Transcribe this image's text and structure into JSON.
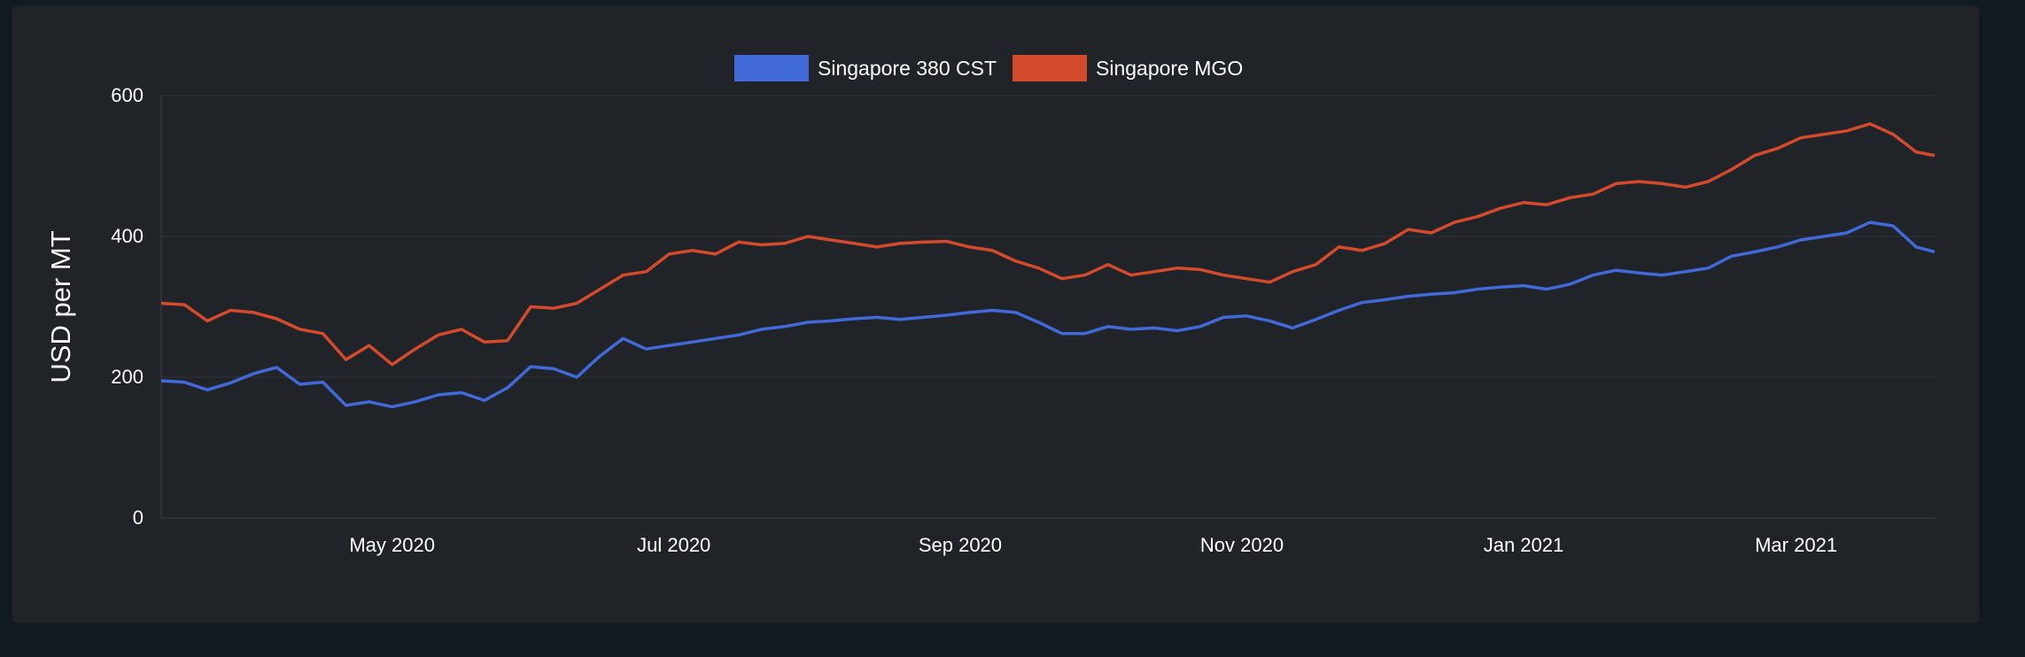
{
  "chart_data": {
    "type": "line",
    "ylabel": "USD per MT",
    "xlabel": "",
    "ylim": [
      0,
      600
    ],
    "yticks": [
      0,
      200,
      400,
      600
    ],
    "xlim": [
      "2020-03-12",
      "2021-03-31"
    ],
    "xticks": [
      {
        "date": "2020-05-01",
        "label": "May 2020"
      },
      {
        "date": "2020-07-01",
        "label": "Jul 2020"
      },
      {
        "date": "2020-09-01",
        "label": "Sep 2020"
      },
      {
        "date": "2020-11-01",
        "label": "Nov 2020"
      },
      {
        "date": "2021-01-01",
        "label": "Jan 2021"
      },
      {
        "date": "2021-03-01",
        "label": "Mar 2021"
      }
    ],
    "grid": true,
    "legend": "top-center",
    "series": [
      {
        "name": "Singapore 380 CST",
        "color": "#4169d8",
        "points": [
          [
            "2020-03-12",
            195
          ],
          [
            "2020-03-17",
            193
          ],
          [
            "2020-03-22",
            182
          ],
          [
            "2020-03-27",
            192
          ],
          [
            "2020-04-01",
            205
          ],
          [
            "2020-04-06",
            214
          ],
          [
            "2020-04-11",
            190
          ],
          [
            "2020-04-16",
            193
          ],
          [
            "2020-04-21",
            160
          ],
          [
            "2020-04-26",
            165
          ],
          [
            "2020-05-01",
            158
          ],
          [
            "2020-05-06",
            165
          ],
          [
            "2020-05-11",
            175
          ],
          [
            "2020-05-16",
            178
          ],
          [
            "2020-05-21",
            167
          ],
          [
            "2020-05-26",
            185
          ],
          [
            "2020-05-31",
            215
          ],
          [
            "2020-06-05",
            212
          ],
          [
            "2020-06-10",
            200
          ],
          [
            "2020-06-15",
            230
          ],
          [
            "2020-06-20",
            255
          ],
          [
            "2020-06-25",
            240
          ],
          [
            "2020-06-30",
            245
          ],
          [
            "2020-07-05",
            250
          ],
          [
            "2020-07-10",
            255
          ],
          [
            "2020-07-15",
            260
          ],
          [
            "2020-07-20",
            268
          ],
          [
            "2020-07-25",
            272
          ],
          [
            "2020-07-30",
            278
          ],
          [
            "2020-08-04",
            280
          ],
          [
            "2020-08-09",
            283
          ],
          [
            "2020-08-14",
            285
          ],
          [
            "2020-08-19",
            282
          ],
          [
            "2020-08-24",
            285
          ],
          [
            "2020-08-29",
            288
          ],
          [
            "2020-09-03",
            292
          ],
          [
            "2020-09-08",
            295
          ],
          [
            "2020-09-13",
            292
          ],
          [
            "2020-09-18",
            278
          ],
          [
            "2020-09-23",
            262
          ],
          [
            "2020-09-28",
            262
          ],
          [
            "2020-10-03",
            272
          ],
          [
            "2020-10-08",
            268
          ],
          [
            "2020-10-13",
            270
          ],
          [
            "2020-10-18",
            266
          ],
          [
            "2020-10-23",
            272
          ],
          [
            "2020-10-28",
            285
          ],
          [
            "2020-11-02",
            287
          ],
          [
            "2020-11-07",
            280
          ],
          [
            "2020-11-12",
            270
          ],
          [
            "2020-11-17",
            282
          ],
          [
            "2020-11-22",
            295
          ],
          [
            "2020-11-27",
            306
          ],
          [
            "2020-12-02",
            310
          ],
          [
            "2020-12-07",
            315
          ],
          [
            "2020-12-12",
            318
          ],
          [
            "2020-12-17",
            320
          ],
          [
            "2020-12-22",
            325
          ],
          [
            "2020-12-27",
            328
          ],
          [
            "2021-01-01",
            330
          ],
          [
            "2021-01-06",
            325
          ],
          [
            "2021-01-11",
            332
          ],
          [
            "2021-01-16",
            345
          ],
          [
            "2021-01-21",
            352
          ],
          [
            "2021-01-26",
            348
          ],
          [
            "2021-01-31",
            345
          ],
          [
            "2021-02-05",
            350
          ],
          [
            "2021-02-10",
            355
          ],
          [
            "2021-02-15",
            372
          ],
          [
            "2021-02-20",
            378
          ],
          [
            "2021-02-25",
            385
          ],
          [
            "2021-03-02",
            395
          ],
          [
            "2021-03-07",
            400
          ],
          [
            "2021-03-12",
            405
          ],
          [
            "2021-03-17",
            420
          ],
          [
            "2021-03-22",
            415
          ],
          [
            "2021-03-27",
            385
          ],
          [
            "2021-03-31",
            378
          ]
        ]
      },
      {
        "name": "Singapore MGO",
        "color": "#d44a2c",
        "points": [
          [
            "2020-03-12",
            305
          ],
          [
            "2020-03-17",
            303
          ],
          [
            "2020-03-22",
            280
          ],
          [
            "2020-03-27",
            295
          ],
          [
            "2020-04-01",
            292
          ],
          [
            "2020-04-06",
            283
          ],
          [
            "2020-04-11",
            268
          ],
          [
            "2020-04-16",
            262
          ],
          [
            "2020-04-21",
            225
          ],
          [
            "2020-04-26",
            245
          ],
          [
            "2020-05-01",
            218
          ],
          [
            "2020-05-06",
            240
          ],
          [
            "2020-05-11",
            260
          ],
          [
            "2020-05-16",
            268
          ],
          [
            "2020-05-21",
            250
          ],
          [
            "2020-05-26",
            252
          ],
          [
            "2020-05-31",
            300
          ],
          [
            "2020-06-05",
            298
          ],
          [
            "2020-06-10",
            305
          ],
          [
            "2020-06-15",
            325
          ],
          [
            "2020-06-20",
            345
          ],
          [
            "2020-06-25",
            350
          ],
          [
            "2020-06-30",
            375
          ],
          [
            "2020-07-05",
            380
          ],
          [
            "2020-07-10",
            375
          ],
          [
            "2020-07-15",
            392
          ],
          [
            "2020-07-20",
            388
          ],
          [
            "2020-07-25",
            390
          ],
          [
            "2020-07-30",
            400
          ],
          [
            "2020-08-04",
            395
          ],
          [
            "2020-08-09",
            390
          ],
          [
            "2020-08-14",
            385
          ],
          [
            "2020-08-19",
            390
          ],
          [
            "2020-08-24",
            392
          ],
          [
            "2020-08-29",
            393
          ],
          [
            "2020-09-03",
            385
          ],
          [
            "2020-09-08",
            380
          ],
          [
            "2020-09-13",
            365
          ],
          [
            "2020-09-18",
            355
          ],
          [
            "2020-09-23",
            340
          ],
          [
            "2020-09-28",
            345
          ],
          [
            "2020-10-03",
            360
          ],
          [
            "2020-10-08",
            345
          ],
          [
            "2020-10-13",
            350
          ],
          [
            "2020-10-18",
            355
          ],
          [
            "2020-10-23",
            353
          ],
          [
            "2020-10-28",
            345
          ],
          [
            "2020-11-02",
            340
          ],
          [
            "2020-11-07",
            335
          ],
          [
            "2020-11-12",
            350
          ],
          [
            "2020-11-17",
            360
          ],
          [
            "2020-11-22",
            385
          ],
          [
            "2020-11-27",
            380
          ],
          [
            "2020-12-02",
            390
          ],
          [
            "2020-12-07",
            410
          ],
          [
            "2020-12-12",
            405
          ],
          [
            "2020-12-17",
            420
          ],
          [
            "2020-12-22",
            428
          ],
          [
            "2020-12-27",
            440
          ],
          [
            "2021-01-01",
            448
          ],
          [
            "2021-01-06",
            445
          ],
          [
            "2021-01-11",
            455
          ],
          [
            "2021-01-16",
            460
          ],
          [
            "2021-01-21",
            475
          ],
          [
            "2021-01-26",
            478
          ],
          [
            "2021-01-31",
            475
          ],
          [
            "2021-02-05",
            470
          ],
          [
            "2021-02-10",
            478
          ],
          [
            "2021-02-15",
            495
          ],
          [
            "2021-02-20",
            515
          ],
          [
            "2021-02-25",
            525
          ],
          [
            "2021-03-02",
            540
          ],
          [
            "2021-03-07",
            545
          ],
          [
            "2021-03-12",
            550
          ],
          [
            "2021-03-17",
            560
          ],
          [
            "2021-03-22",
            545
          ],
          [
            "2021-03-27",
            520
          ],
          [
            "2021-03-31",
            515
          ]
        ]
      }
    ]
  }
}
